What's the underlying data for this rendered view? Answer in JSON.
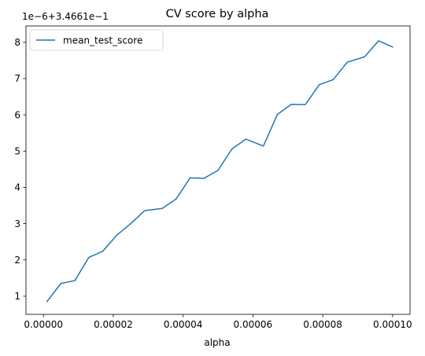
{
  "chart_data": {
    "type": "line",
    "title": "CV score by alpha",
    "xlabel": "alpha",
    "ylabel": "",
    "y_offset_label": "1e−6+3.4661e−1",
    "xlim": [
      -5e-06,
      0.000105
    ],
    "ylim": [
      0.5,
      8.45
    ],
    "x_ticks": [
      0,
      2e-05,
      4e-05,
      6e-05,
      8e-05,
      0.0001
    ],
    "x_tick_labels": [
      "0.00000",
      "0.00002",
      "0.00004",
      "0.00006",
      "0.00008",
      "0.00010"
    ],
    "y_ticks": [
      1,
      2,
      3,
      4,
      5,
      6,
      7,
      8
    ],
    "y_tick_labels": [
      "1",
      "2",
      "3",
      "4",
      "5",
      "6",
      "7",
      "8"
    ],
    "grid": false,
    "legend_position": "top-left",
    "series": [
      {
        "name": "mean_test_score",
        "color": "#1f77b4",
        "x": [
          1e-06,
          5e-06,
          9e-06,
          1.3e-05,
          1.7e-05,
          2.1e-05,
          2.5e-05,
          2.9e-05,
          3.4e-05,
          3.8e-05,
          4.2e-05,
          4.6e-05,
          5e-05,
          5.4e-05,
          5.8e-05,
          6.3e-05,
          6.7e-05,
          7.1e-05,
          7.5e-05,
          7.9e-05,
          8.3e-05,
          8.7e-05,
          9.2e-05,
          9.6e-05,
          0.0001
        ],
        "values": [
          0.85,
          1.35,
          1.43,
          2.07,
          2.24,
          2.68,
          3.0,
          3.36,
          3.42,
          3.68,
          4.26,
          4.25,
          4.47,
          5.06,
          5.33,
          5.14,
          6.01,
          6.29,
          6.28,
          6.83,
          6.97,
          7.45,
          7.6,
          8.04,
          7.87
        ]
      }
    ]
  }
}
